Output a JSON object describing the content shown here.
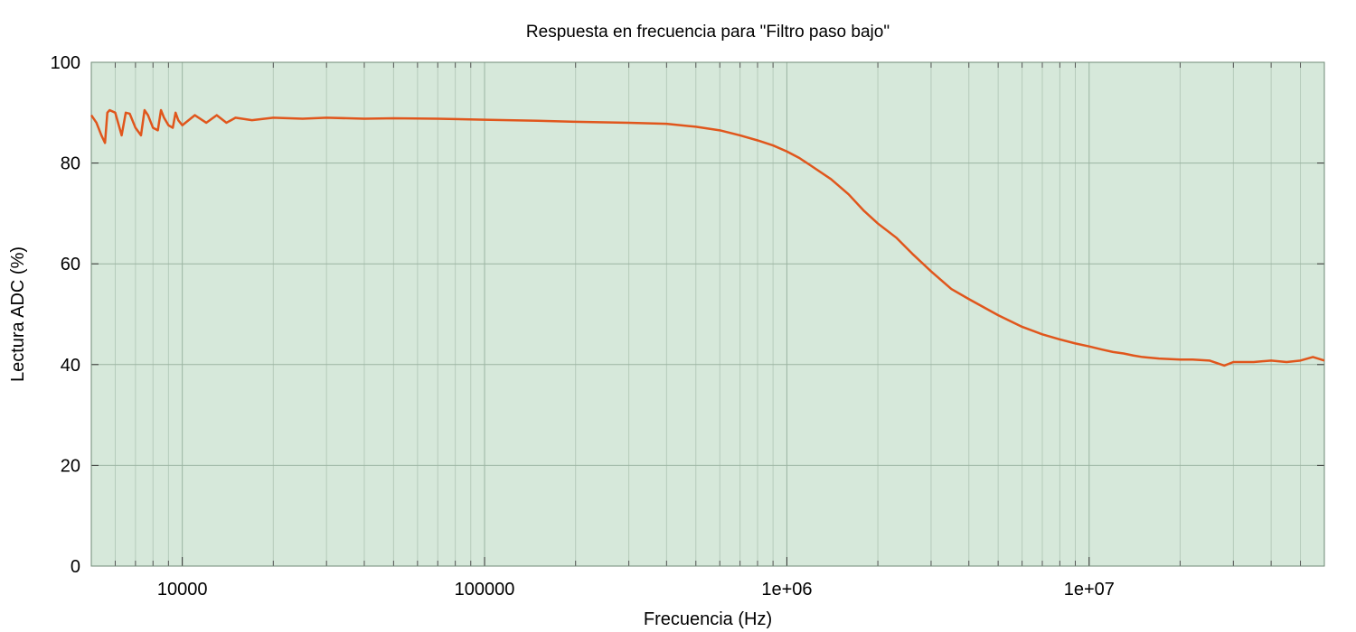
{
  "chart_data": {
    "type": "line",
    "title": "Respuesta en frecuencia para \"Filtro paso bajo\"",
    "xlabel": "Frecuencia (Hz)",
    "ylabel": "Lectura ADC (%)",
    "xscale": "log",
    "xlim": [
      5000,
      60000000
    ],
    "ylim": [
      0,
      100
    ],
    "grid": true,
    "legend": "none",
    "colors": {
      "plot_background": "#d6e8da",
      "grid_major": "#9bb4a2",
      "grid_minor": "#b6cbbb",
      "series": "#e0561c"
    },
    "x_ticks": [
      {
        "value": 10000,
        "label": "10000"
      },
      {
        "value": 100000,
        "label": "100000"
      },
      {
        "value": 1000000,
        "label": "1e+06"
      },
      {
        "value": 10000000,
        "label": "1e+07"
      }
    ],
    "y_ticks": [
      {
        "value": 0,
        "label": "0"
      },
      {
        "value": 20,
        "label": "20"
      },
      {
        "value": 40,
        "label": "40"
      },
      {
        "value": 60,
        "label": "60"
      },
      {
        "value": 80,
        "label": "80"
      },
      {
        "value": 100,
        "label": "100"
      }
    ],
    "series": [
      {
        "x": [
          5000,
          5200,
          5400,
          5550,
          5650,
          5750,
          6000,
          6300,
          6500,
          6700,
          7000,
          7300,
          7500,
          7700,
          8000,
          8300,
          8500,
          8700,
          9000,
          9300,
          9500,
          9700,
          10000,
          11000,
          12000,
          13000,
          14000,
          15000,
          17000,
          20000,
          25000,
          30000,
          40000,
          50000,
          70000,
          100000,
          150000,
          200000,
          300000,
          400000,
          500000,
          600000,
          700000,
          800000,
          900000,
          1000000,
          1100000,
          1200000,
          1400000,
          1600000,
          1800000,
          2000000,
          2300000,
          2600000,
          3000000,
          3500000,
          4000000,
          5000000,
          6000000,
          7000000,
          8000000,
          9000000,
          10000000,
          11000000,
          12000000,
          13000000,
          14000000,
          15000000,
          17000000,
          20000000,
          22000000,
          25000000,
          28000000,
          30000000,
          35000000,
          40000000,
          45000000,
          50000000,
          55000000,
          60000000
        ],
        "y": [
          89.5,
          88.0,
          85.5,
          84.0,
          90.0,
          90.5,
          90.0,
          85.5,
          90.0,
          89.8,
          87.0,
          85.5,
          90.5,
          89.5,
          87.0,
          86.5,
          90.5,
          89.0,
          87.5,
          87.0,
          90.0,
          88.5,
          87.5,
          89.5,
          88.0,
          89.5,
          88.0,
          89.0,
          88.5,
          89.0,
          88.8,
          89.0,
          88.8,
          88.9,
          88.8,
          88.6,
          88.4,
          88.2,
          88.0,
          87.8,
          87.2,
          86.5,
          85.5,
          84.5,
          83.5,
          82.3,
          81.0,
          79.5,
          76.8,
          73.8,
          70.5,
          68.0,
          65.2,
          62.0,
          58.5,
          55.0,
          53.0,
          49.8,
          47.5,
          46.0,
          45.0,
          44.2,
          43.6,
          43.0,
          42.5,
          42.2,
          41.8,
          41.5,
          41.2,
          41.0,
          41.0,
          40.8,
          39.8,
          40.5,
          40.5,
          40.8,
          40.5,
          40.8,
          41.5,
          40.8
        ]
      }
    ]
  }
}
